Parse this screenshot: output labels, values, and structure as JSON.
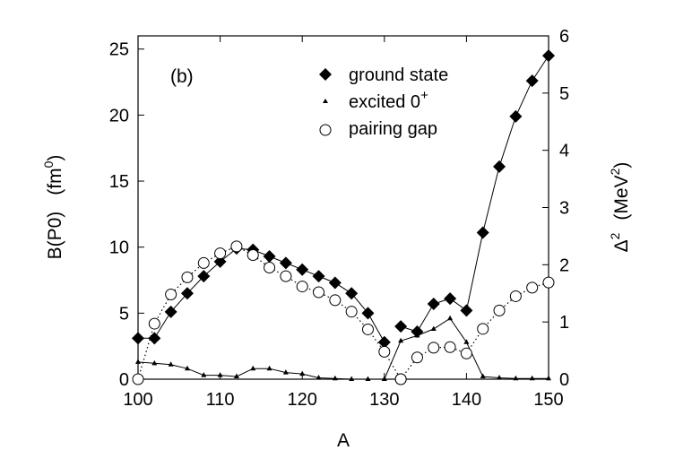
{
  "chart_data": {
    "type": "line",
    "panel_label": "(b)",
    "xlabel": "A",
    "ylabel_left": {
      "main": "B(P0)",
      "unit_base": "(fm",
      "unit_exp": "0",
      "unit_close": ")"
    },
    "ylabel_right": {
      "main": "Δ",
      "main_exp": "2",
      "unit_base": "(MeV",
      "unit_exp": "2",
      "unit_close": ")"
    },
    "xlim": [
      100,
      150
    ],
    "ylim_left": [
      0,
      26
    ],
    "ylim_right": [
      0,
      6
    ],
    "x_ticks": [
      "100",
      "110",
      "120",
      "130",
      "140",
      "150"
    ],
    "y_left_ticks": [
      "0",
      "5",
      "10",
      "15",
      "20",
      "25"
    ],
    "y_right_ticks": [
      "0",
      "1",
      "2",
      "3",
      "4",
      "5",
      "6"
    ],
    "legend_position": "top-center",
    "series": [
      {
        "name": "ground state",
        "marker": "diamond",
        "line": "solid",
        "axis": "left",
        "segments": [
          {
            "x": [
              100,
              102,
              104,
              106,
              108,
              110,
              112,
              114,
              116,
              118,
              120,
              122,
              124,
              126,
              128,
              130
            ],
            "y": [
              3.1,
              3.1,
              5.1,
              6.5,
              7.8,
              8.9,
              9.9,
              9.8,
              9.3,
              8.8,
              8.3,
              7.8,
              7.3,
              6.5,
              5.0,
              2.8
            ]
          },
          {
            "x": [
              132,
              134,
              136,
              138,
              140,
              142,
              144,
              146,
              148,
              150
            ],
            "y": [
              4.0,
              3.6,
              5.7,
              6.1,
              5.2,
              11.1,
              16.1,
              19.9,
              22.6,
              24.5
            ]
          }
        ]
      },
      {
        "name_base": "excited 0",
        "name_sup": "+",
        "marker": "triangle",
        "line": "solid",
        "axis": "left",
        "segments": [
          {
            "x": [
              100,
              102,
              104,
              106,
              108,
              110,
              112,
              114,
              116,
              118,
              120,
              122,
              124,
              126,
              128,
              130
            ],
            "y": [
              1.3,
              1.2,
              1.1,
              0.8,
              0.3,
              0.3,
              0.2,
              0.8,
              0.8,
              0.5,
              0.4,
              0.1,
              0.05,
              0.0,
              0.0,
              0.0
            ]
          },
          {
            "x": [
              130,
              132,
              134,
              136,
              138,
              140,
              142,
              144,
              146,
              148,
              150
            ],
            "y": [
              0.0,
              2.9,
              3.3,
              3.8,
              4.6,
              2.8,
              0.2,
              0.1,
              0.05,
              0.05,
              0.05
            ]
          }
        ]
      },
      {
        "name": "pairing gap",
        "marker": "circle",
        "line": "dotted",
        "axis": "right",
        "segments": [
          {
            "x": [
              100,
              102,
              104,
              106,
              108,
              110,
              112,
              114,
              116,
              118,
              120,
              122,
              124,
              126,
              128,
              130,
              132
            ],
            "y": [
              0.0,
              0.97,
              1.48,
              1.78,
              2.03,
              2.2,
              2.32,
              2.17,
              1.95,
              1.8,
              1.62,
              1.52,
              1.38,
              1.18,
              0.87,
              0.48,
              0.0
            ]
          },
          {
            "x": [
              132,
              134,
              136,
              138,
              140,
              142,
              144,
              146,
              148,
              150
            ],
            "y": [
              0.0,
              0.38,
              0.55,
              0.56,
              0.45,
              0.88,
              1.2,
              1.45,
              1.6,
              1.69
            ]
          }
        ]
      }
    ]
  }
}
